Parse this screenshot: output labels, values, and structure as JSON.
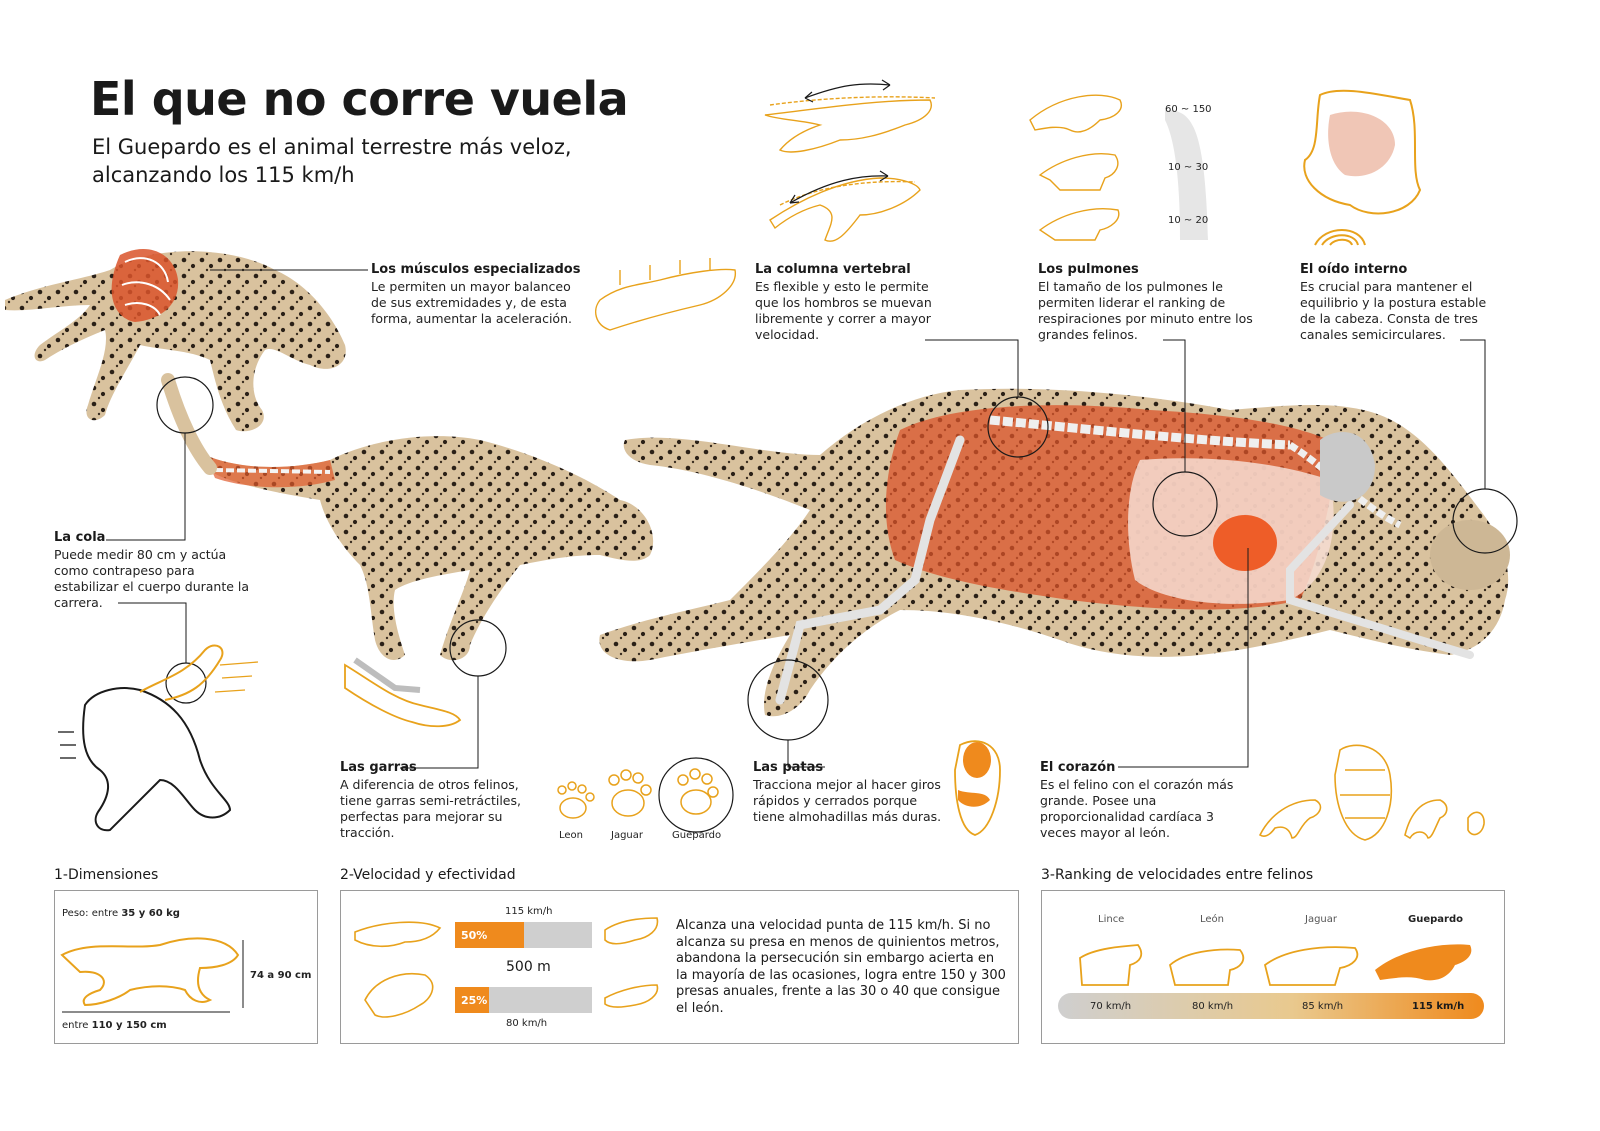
{
  "title": "El que no corre vuela",
  "subtitle": "El Guepardo es el animal terrestre más veloz, alcanzando los 115 km/h",
  "callouts": {
    "musculos": {
      "heading": "Los músculos especializados",
      "text": "Le permiten un mayor balanceo de sus extremidades y, de esta forma, aumentar la aceleración."
    },
    "columna": {
      "heading": "La columna vertebral",
      "text": "Es flexible y esto le permite que los hombros se muevan libremente y correr a mayor velocidad."
    },
    "pulmones": {
      "heading": "Los pulmones",
      "text": "El tamaño de los pulmones le permiten liderar el ranking de respiraciones por minuto entre los grandes felinos."
    },
    "oido": {
      "heading": "El oído interno",
      "text": "Es crucial para mantener el equilibrio y la postura estable de la cabeza. Consta de tres canales semicirculares."
    },
    "cola": {
      "heading": "La cola",
      "text": "Puede medir 80 cm y actúa como contrapeso para estabilizar el cuerpo durante la carrera."
    },
    "garras": {
      "heading": "Las garras",
      "text": "A diferencia de otros felinos, tiene garras semi-retráctiles, perfectas para mejorar su tracción."
    },
    "patas": {
      "heading": "Las patas",
      "text": "Tracciona mejor al hacer giros rápidos y cerrados porque tiene almohadillas más duras."
    },
    "corazon": {
      "heading": "El corazón",
      "text": "Es el felino con el corazón más grande. Posee una proporcionalidad cardíaca 3 veces mayor al león."
    }
  },
  "breath_labels": [
    "60 ~ 150",
    "10 ~ 30",
    "10 ~ 20"
  ],
  "paw_labels": [
    "Leon",
    "Jaguar",
    "Guepardo"
  ],
  "dimensiones": {
    "section_title": "1-Dimensiones",
    "peso_prefix": "Peso: entre ",
    "peso_value": "35 y 60 kg",
    "altura": "74 a 90 cm",
    "largo_prefix": "entre ",
    "largo_value": "110 y 150 cm"
  },
  "velocidad": {
    "section_title": "2-Velocidad y efectividad",
    "top_speed_label": "115 km/h",
    "bar1_label": "50%",
    "bar1_fraction": 0.5,
    "distance_label": "500 m",
    "bar2_label": "25%",
    "bar2_fraction": 0.25,
    "bottom_speed_label": "80 km/h",
    "description": "Alcanza una velocidad punta de 115 km/h. Si no alcanza su presa en menos de quinientos metros, abandona la persecución sin embargo acierta en la mayoría de las ocasiones, logra entre 150 y 300 presas anuales, frente a las 30 o 40 que consigue el león."
  },
  "ranking": {
    "section_title": "3-Ranking de velocidades entre felinos",
    "animals": [
      {
        "name": "Lince",
        "speed": "70 km/h"
      },
      {
        "name": "León",
        "speed": "80 km/h"
      },
      {
        "name": "Jaguar",
        "speed": "85 km/h"
      },
      {
        "name": "Guepardo",
        "speed": "115 km/h"
      }
    ]
  },
  "colors": {
    "accent": "#e8a21c",
    "orange": "#ef8a1d",
    "muscle": "#d9532a",
    "bar_gray": "#cfcfcf"
  }
}
